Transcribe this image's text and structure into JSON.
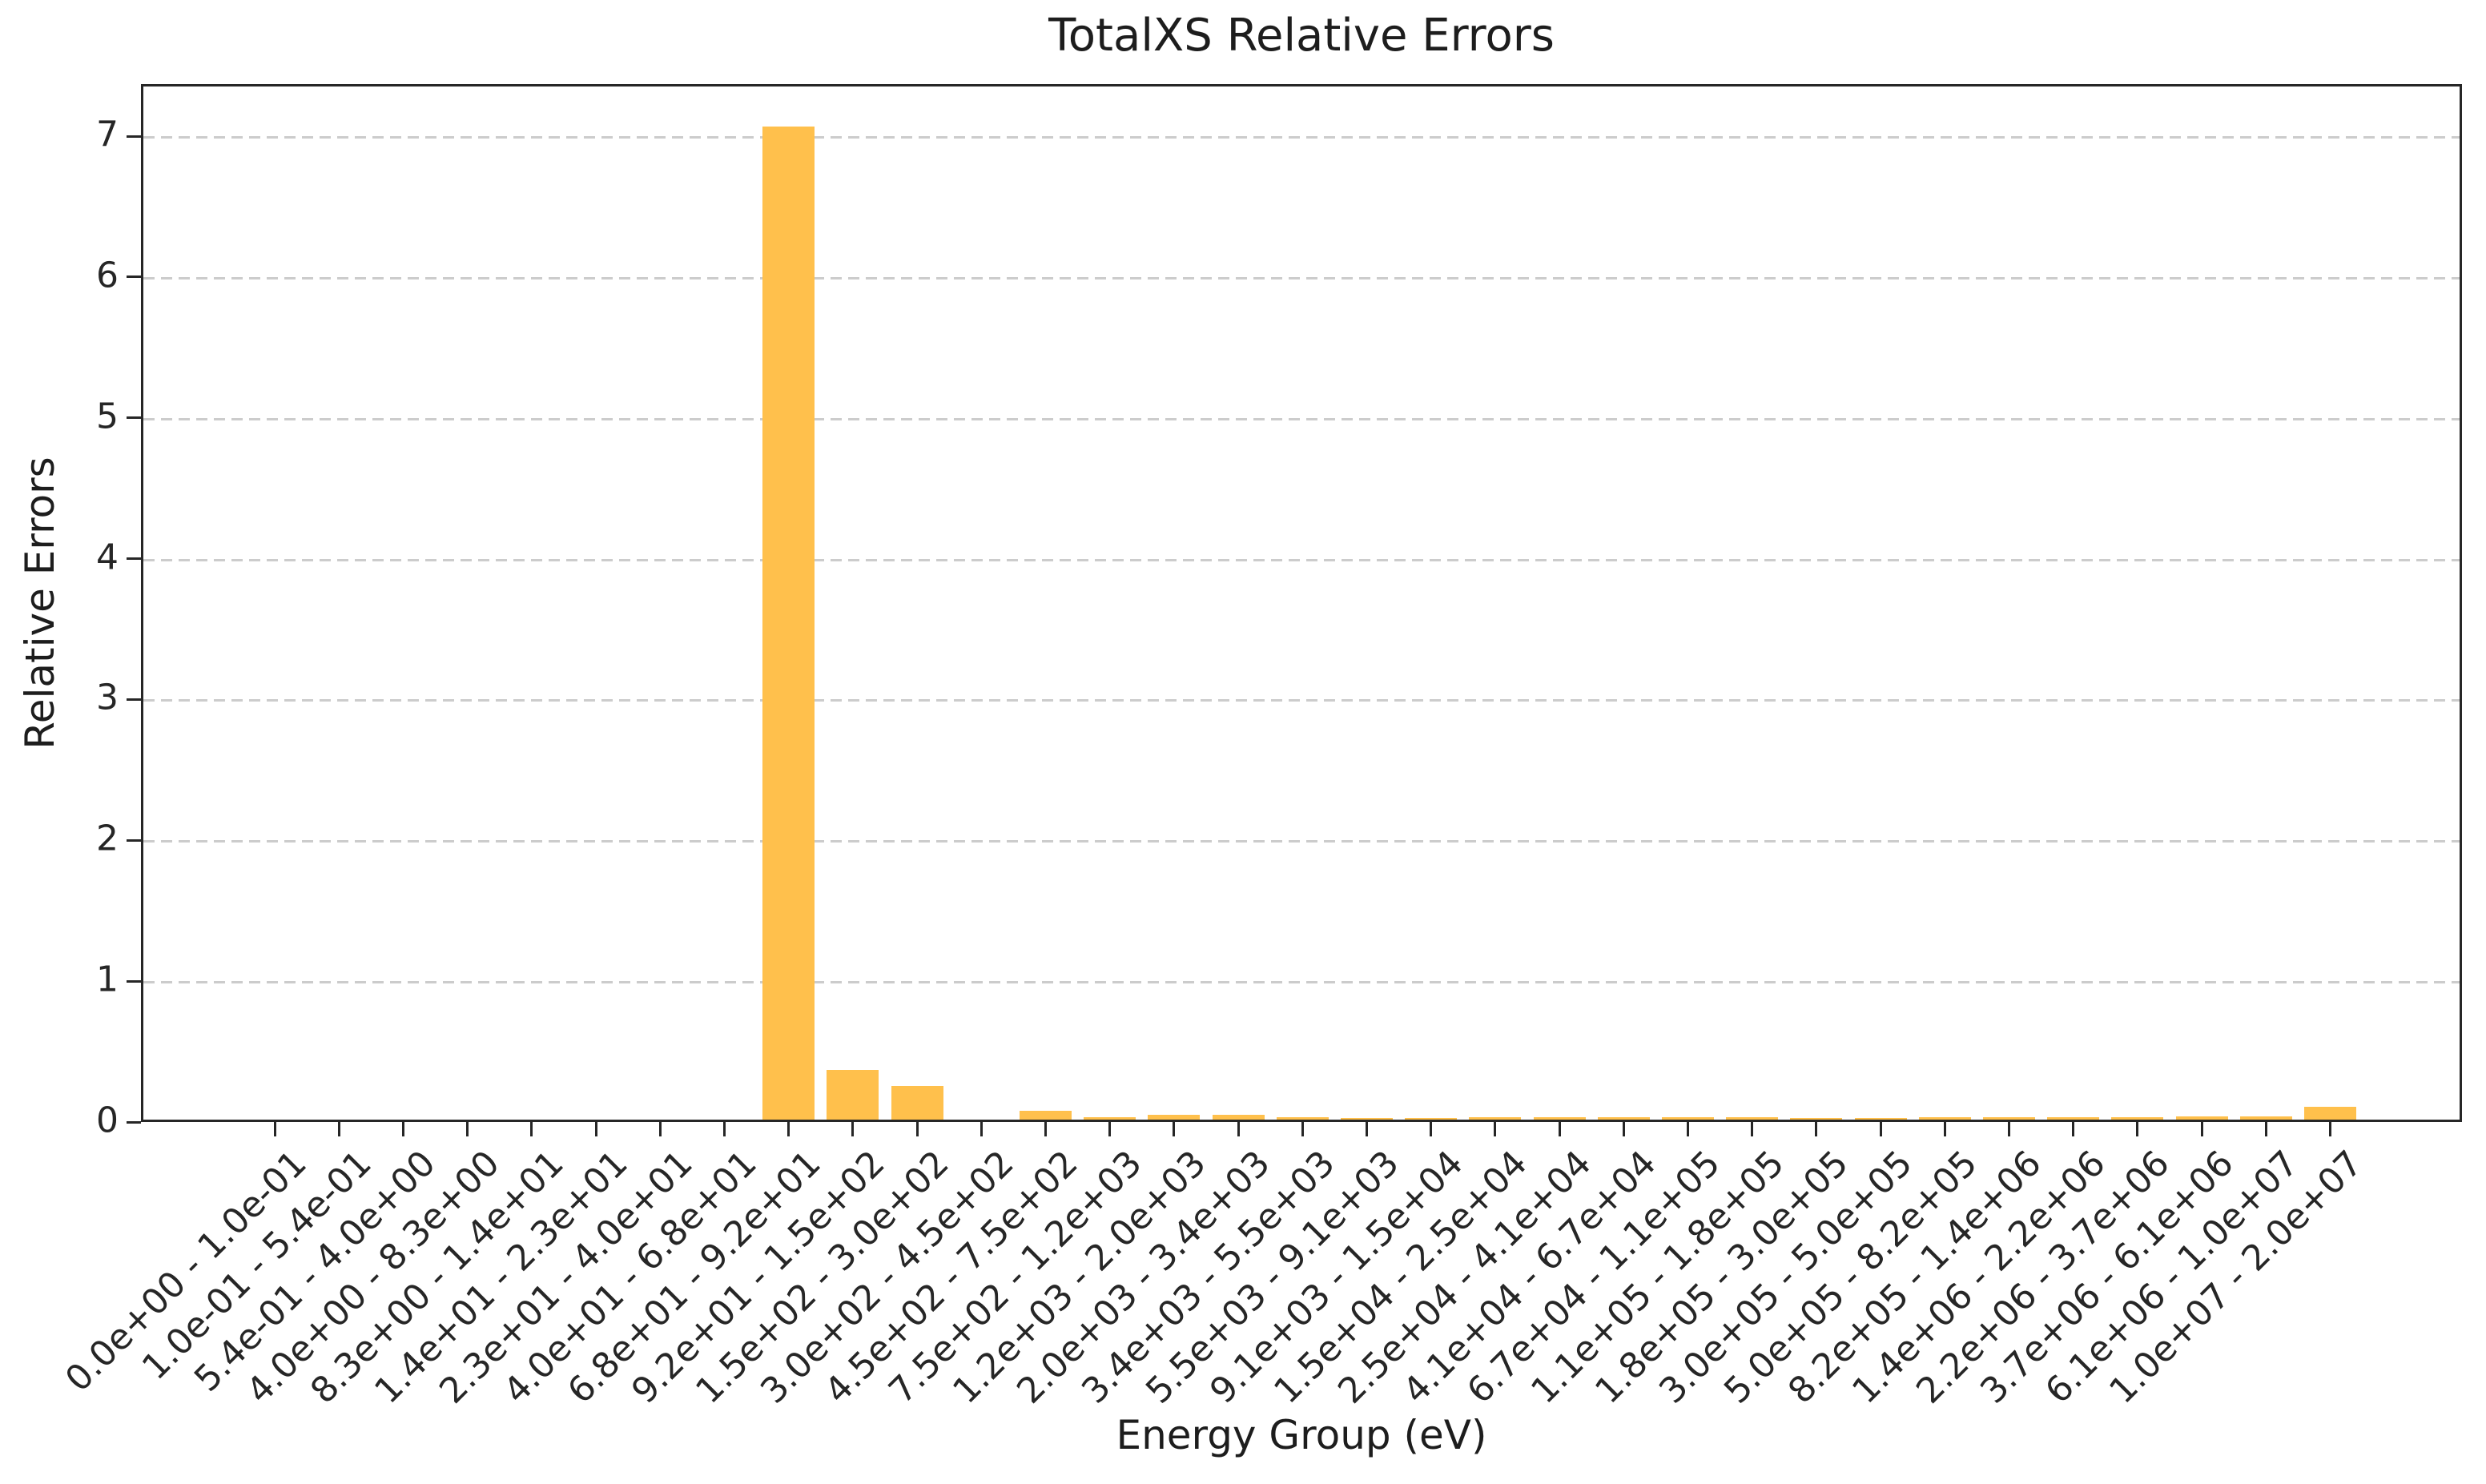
{
  "chart_data": {
    "type": "bar",
    "title": "TotalXS Relative Errors",
    "xlabel": "Energy Group (eV)",
    "ylabel": "Relative Errors",
    "categories": [
      "0.0e+00 - 1.0e-01",
      "1.0e-01 - 5.4e-01",
      "5.4e-01 - 4.0e+00",
      "4.0e+00 - 8.3e+00",
      "8.3e+00 - 1.4e+01",
      "1.4e+01 - 2.3e+01",
      "2.3e+01 - 4.0e+01",
      "4.0e+01 - 6.8e+01",
      "6.8e+01 - 9.2e+01",
      "9.2e+01 - 1.5e+02",
      "1.5e+02 - 3.0e+02",
      "3.0e+02 - 4.5e+02",
      "4.5e+02 - 7.5e+02",
      "7.5e+02 - 1.2e+03",
      "1.2e+03 - 2.0e+03",
      "2.0e+03 - 3.4e+03",
      "3.4e+03 - 5.5e+03",
      "5.5e+03 - 9.1e+03",
      "9.1e+03 - 1.5e+04",
      "1.5e+04 - 2.5e+04",
      "2.5e+04 - 4.1e+04",
      "4.1e+04 - 6.7e+04",
      "6.7e+04 - 1.1e+05",
      "1.1e+05 - 1.8e+05",
      "1.8e+05 - 3.0e+05",
      "3.0e+05 - 5.0e+05",
      "5.0e+05 - 8.2e+05",
      "8.2e+05 - 1.4e+06",
      "1.4e+06 - 2.2e+06",
      "2.2e+06 - 3.7e+06",
      "3.7e+06 - 6.1e+06",
      "6.1e+06 - 1.0e+07",
      "1.0e+07 - 2.0e+07"
    ],
    "values": [
      0,
      0,
      0,
      0,
      0,
      0,
      0,
      0,
      7.05,
      0.35,
      0.24,
      0,
      0.06,
      0.015,
      0.035,
      0.035,
      0.015,
      0.012,
      0.012,
      0.015,
      0.015,
      0.015,
      0.015,
      0.015,
      0.012,
      0.012,
      0.015,
      0.015,
      0.015,
      0.015,
      0.025,
      0.02,
      0.09
    ],
    "yticks": [
      "0",
      "1",
      "2",
      "3",
      "4",
      "5",
      "6",
      "7"
    ],
    "ylim": [
      0,
      7.37
    ],
    "grid": "horizontal-dashed",
    "legend": "none",
    "bar_color": "#FFC04C",
    "grid_color": "#cccccc",
    "axis_color": "#262626",
    "text_color": "#1d1d1d",
    "background": "#ffffff"
  }
}
